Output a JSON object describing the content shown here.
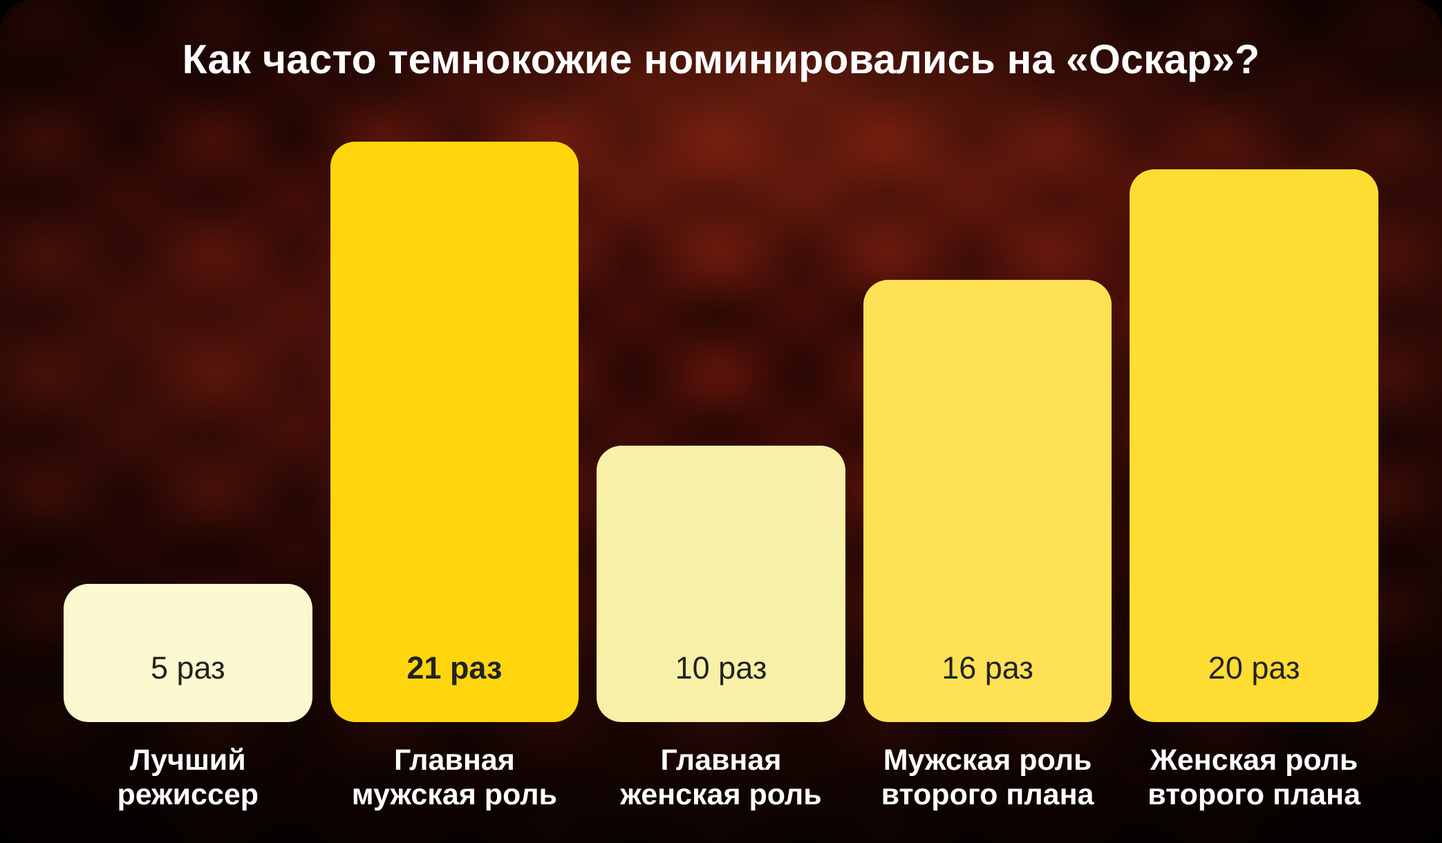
{
  "title": "Как часто темнокожие номинировались на «Оскар»?",
  "chart_data": {
    "type": "bar",
    "title": "Как часто темнокожие номинировались на «Оскар»?",
    "unit": "раз",
    "orientation": "vertical",
    "grid": false,
    "legend_position": "none",
    "ylim": [
      0,
      21
    ],
    "categories": [
      "Лучший режиссер",
      "Главная мужская роль",
      "Главная женская роль",
      "Мужская роль второго плана",
      "Женская роль второго плана"
    ],
    "values": [
      5,
      21,
      10,
      16,
      20
    ],
    "value_labels": [
      "5 раз",
      "21 раз",
      "10 раз",
      "16 раз",
      "20 раз"
    ],
    "label_lines": [
      [
        "Лучший",
        "режиссер"
      ],
      [
        "Главная",
        "мужская роль"
      ],
      [
        "Главная",
        "женская роль"
      ],
      [
        "Мужская роль",
        "второго плана"
      ],
      [
        "Женская роль",
        "второго плана"
      ]
    ],
    "bar_colors": [
      "#FCF8CF",
      "#FFD60E",
      "#F8F0A6",
      "#FFE155",
      "#FFDC32"
    ],
    "emphasized_index": 1,
    "colors": {
      "background_base": "#240604",
      "background_accent": "#96261A",
      "title_text": "#FFFFFF",
      "label_text": "#FFFFFF",
      "bar_value_text": "#222222"
    }
  }
}
